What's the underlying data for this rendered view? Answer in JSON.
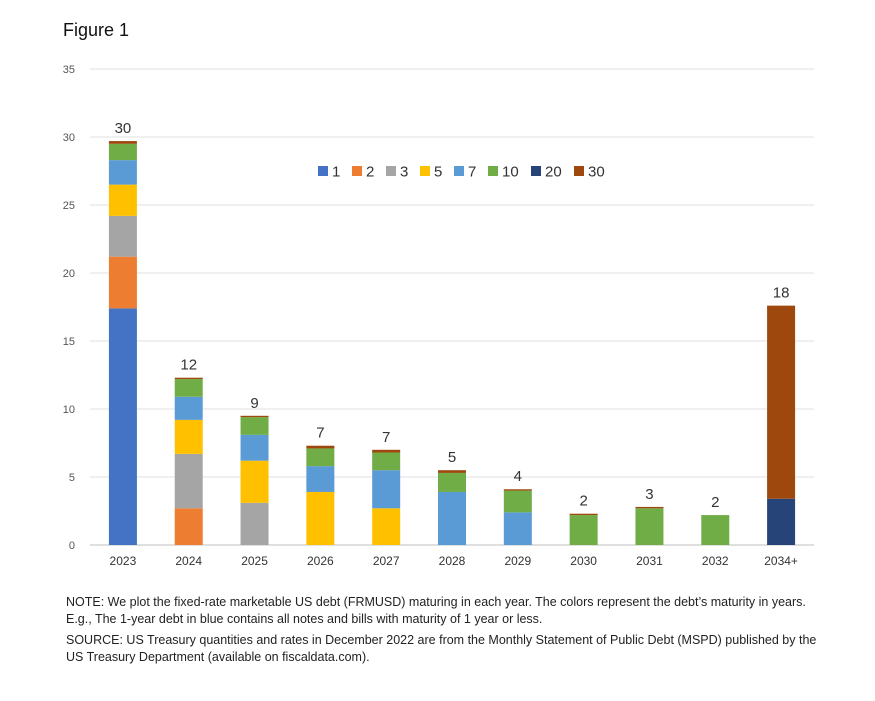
{
  "figure_title": "Figure 1",
  "chart_data": {
    "type": "bar",
    "stacked": true,
    "categories": [
      "2023",
      "2024",
      "2025",
      "2026",
      "2027",
      "2028",
      "2029",
      "2030",
      "2031",
      "2032",
      "2034+"
    ],
    "ylim": [
      0,
      35
    ],
    "yticks": [
      0,
      5,
      10,
      15,
      20,
      25,
      30,
      35
    ],
    "grid": true,
    "legend_position": "top-center",
    "series": [
      {
        "name": "1",
        "color": "#4472C4",
        "values": [
          17.4,
          0,
          0,
          0,
          0,
          0,
          0,
          0,
          0,
          0,
          0
        ]
      },
      {
        "name": "2",
        "color": "#ED7D31",
        "values": [
          3.8,
          2.7,
          0,
          0,
          0,
          0,
          0,
          0,
          0,
          0,
          0
        ]
      },
      {
        "name": "3",
        "color": "#A5A5A5",
        "values": [
          3.0,
          4.0,
          3.1,
          0,
          0,
          0,
          0,
          0,
          0,
          0,
          0
        ]
      },
      {
        "name": "5",
        "color": "#FFC000",
        "values": [
          2.3,
          2.5,
          3.1,
          3.9,
          2.7,
          0,
          0,
          0,
          0,
          0,
          0
        ]
      },
      {
        "name": "7",
        "color": "#5B9BD5",
        "values": [
          1.8,
          1.7,
          1.9,
          1.9,
          2.8,
          3.9,
          2.4,
          0,
          0,
          0,
          0
        ]
      },
      {
        "name": "10",
        "color": "#70AD47",
        "values": [
          1.2,
          1.3,
          1.3,
          1.3,
          1.3,
          1.4,
          1.6,
          2.2,
          2.7,
          2.2,
          0
        ]
      },
      {
        "name": "20",
        "color": "#264478",
        "values": [
          0,
          0,
          0,
          0,
          0,
          0,
          0,
          0,
          0,
          0,
          3.4
        ]
      },
      {
        "name": "30",
        "color": "#9E480E",
        "values": [
          0.2,
          0.1,
          0.1,
          0.2,
          0.2,
          0.2,
          0.1,
          0.1,
          0.1,
          0,
          14.2
        ]
      }
    ],
    "totals": [
      "30",
      "12",
      "9",
      "7",
      "7",
      "5",
      "4",
      "2",
      "3",
      "2",
      "18"
    ]
  },
  "notes": {
    "note": "NOTE:  We plot the fixed-rate marketable US debt (FRMUSD) maturing in each year. The colors represent the debt’s maturity in years. E.g., The 1-year debt in blue contains all notes and bills with maturity of 1 year or less.",
    "source": "SOURCE: US Treasury quantities and rates in December 2022 are from the Monthly Statement of Public Debt (MSPD) published by the US Treasury Department (available on fiscaldata.com)."
  }
}
